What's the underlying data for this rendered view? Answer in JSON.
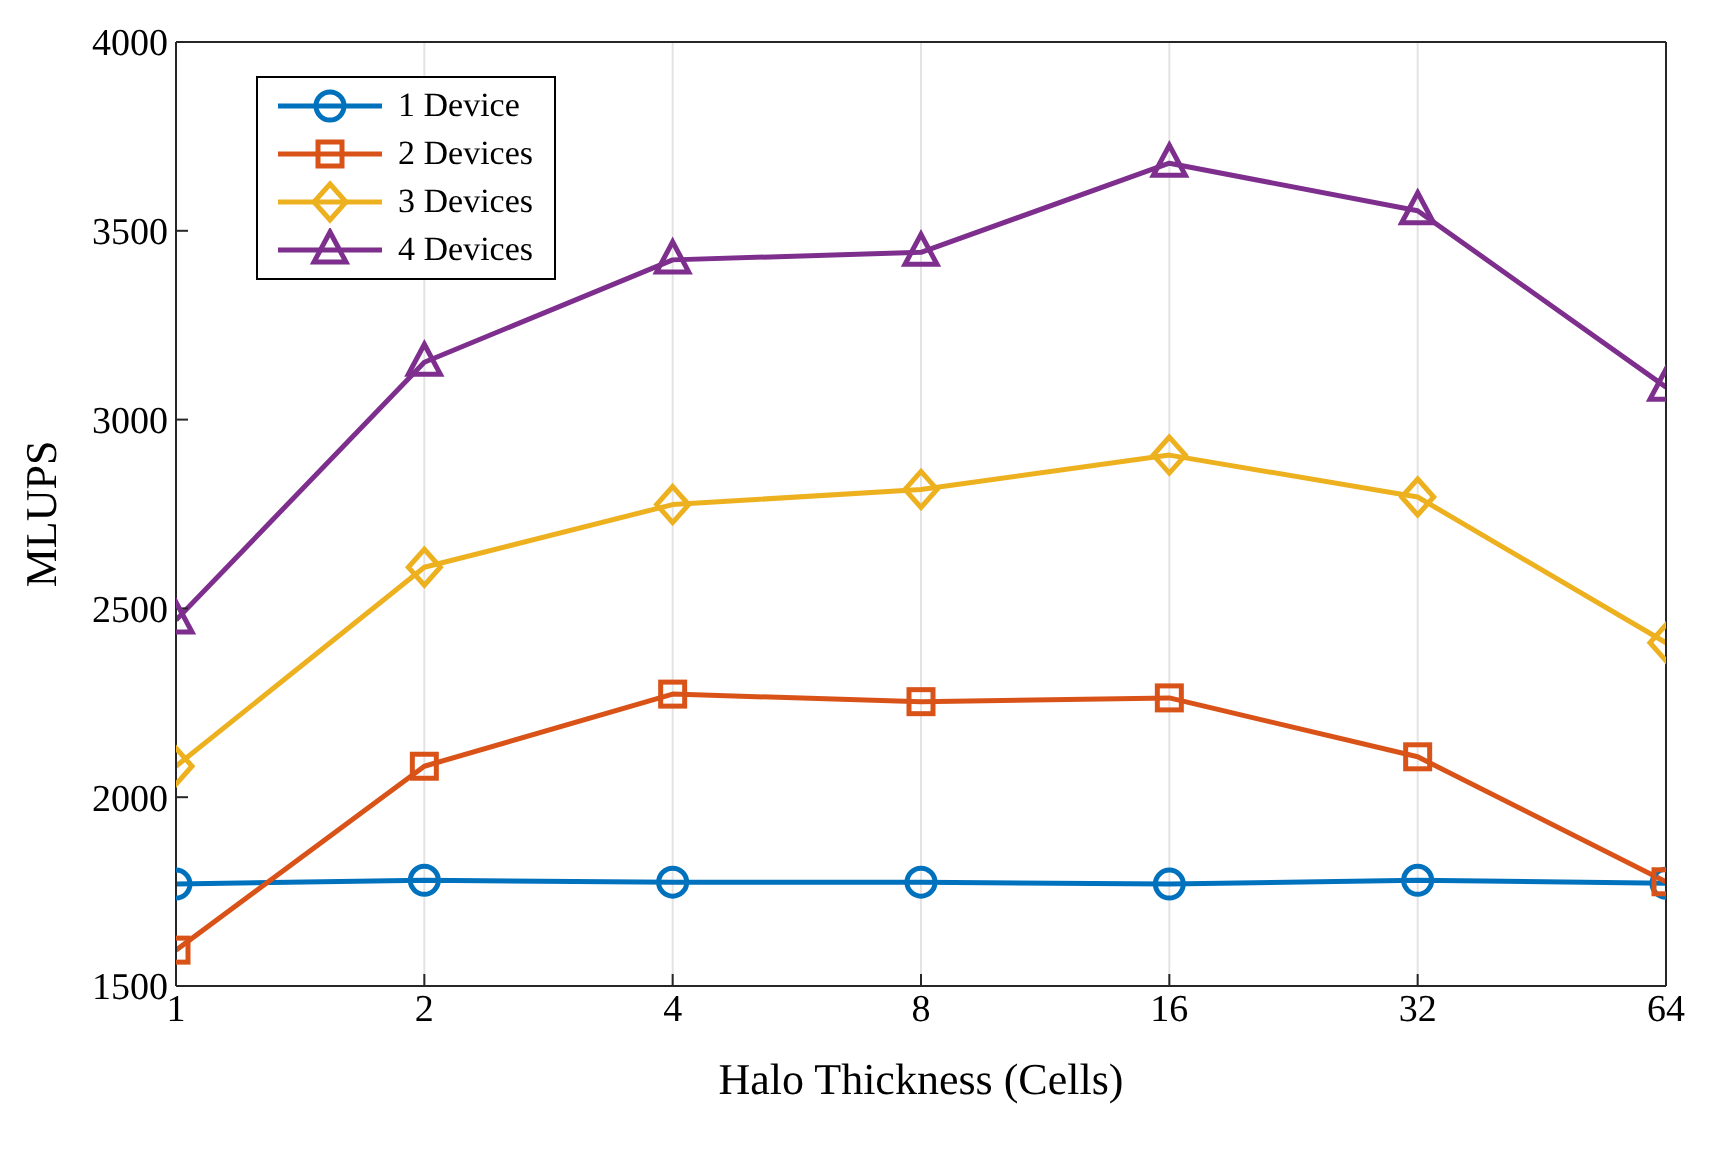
{
  "chart_data": {
    "type": "line",
    "xlabel": "Halo Thickness (Cells)",
    "ylabel": "MLUPS",
    "x": [
      1,
      2,
      4,
      8,
      16,
      32,
      64
    ],
    "log": "x",
    "xlim": [
      1,
      64
    ],
    "xticks": [
      1,
      2,
      4,
      8,
      16,
      32,
      64
    ],
    "ylim": [
      1500,
      4000
    ],
    "yticks": [
      1500,
      2000,
      2500,
      3000,
      3500,
      4000
    ],
    "grid": true,
    "legend": "top left",
    "line_style": "solid",
    "series": [
      {
        "name": "1 Device",
        "color": "#0072bd",
        "marker": "circle",
        "values": [
          1770,
          1780,
          1775,
          1775,
          1770,
          1780,
          1772
        ]
      },
      {
        "name": "2 Devices",
        "color": "#d95319",
        "marker": "square",
        "values": [
          1595,
          2082,
          2273,
          2253,
          2263,
          2107,
          1776
        ]
      },
      {
        "name": "3 Devices",
        "color": "#edb120",
        "marker": "diamond",
        "values": [
          2082,
          2609,
          2775,
          2815,
          2906,
          2795,
          2409
        ]
      },
      {
        "name": "4 Devices",
        "color": "#7e2f8e",
        "marker": "triangle",
        "values": [
          2469,
          3152,
          3423,
          3443,
          3679,
          3553,
          3086
        ]
      }
    ]
  }
}
